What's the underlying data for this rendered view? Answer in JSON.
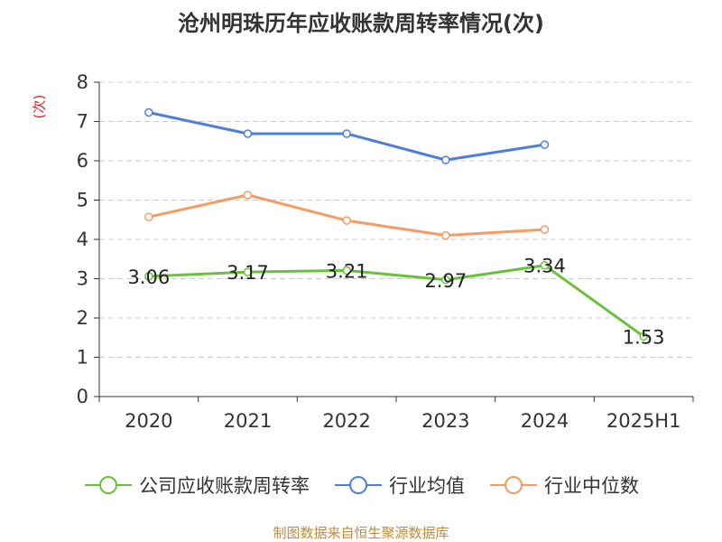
{
  "title": "沧州明珠历年应收账款周转率情况(次)",
  "source": "制图数据来自恒生聚源数据库",
  "colors": {
    "turnover": "#67c23a",
    "industry_avg": "#4e7fd8",
    "industry_median": "#f79a64",
    "axis": "#333333",
    "grid": "#cccccc",
    "ylabel": "#e02020",
    "source": "#c28a3a"
  },
  "legend": [
    {
      "label": "公司应收账款周转率",
      "series": 0
    },
    {
      "label": "行业均值",
      "series": 1
    },
    {
      "label": "行业中位数",
      "series": 2
    }
  ],
  "chart_data": {
    "type": "line",
    "title": "沧州明珠历年应收账款周转率情况(次)",
    "xlabel": "",
    "ylabel": "(次)",
    "categories": [
      "2020",
      "2021",
      "2022",
      "2023",
      "2024",
      "2025H1"
    ],
    "ylim": [
      0,
      8
    ],
    "yticks": [
      0,
      1,
      2,
      3,
      4,
      5,
      6,
      7,
      8
    ],
    "grid": true,
    "legend_position": "bottom",
    "series": [
      {
        "name": "公司应收账款周转率",
        "color": "#67c23a",
        "values": [
          3.06,
          3.17,
          3.21,
          2.97,
          3.34,
          1.53
        ],
        "data_labels": [
          "3.06",
          "3.17",
          "3.21",
          "2.97",
          "3.34",
          "1.53"
        ]
      },
      {
        "name": "行业均值",
        "color": "#4e7fd8",
        "values": [
          7.23,
          6.69,
          6.69,
          6.02,
          6.41,
          null
        ]
      },
      {
        "name": "行业中位数",
        "color": "#f79a64",
        "values": [
          4.57,
          5.13,
          4.48,
          4.1,
          4.25,
          null
        ]
      }
    ]
  }
}
